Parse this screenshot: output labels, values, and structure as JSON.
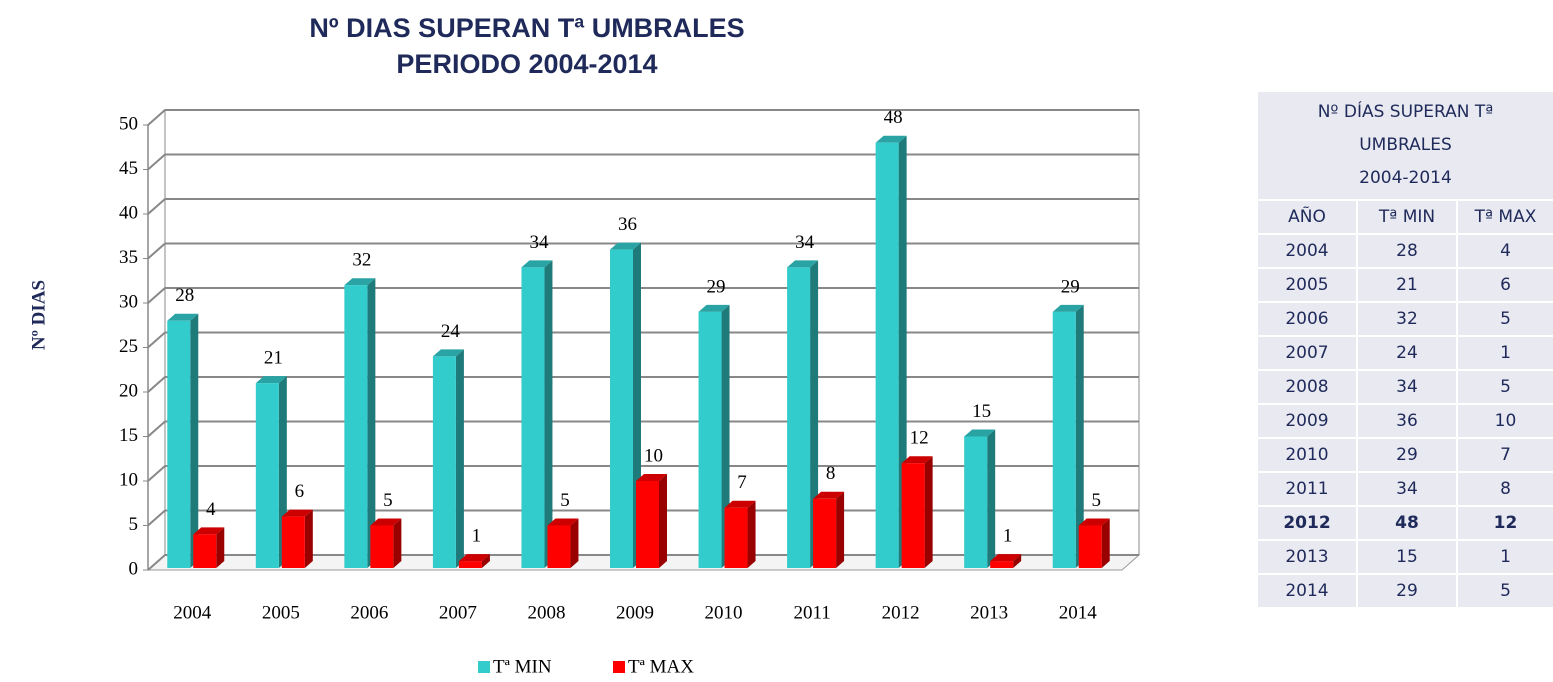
{
  "chart_data": {
    "type": "bar3d",
    "title": [
      "Nº DIAS SUPERAN Tª UMBRALES",
      "PERIODO 2004-2014"
    ],
    "y_label": "Nº DIAS",
    "categories": [
      "2004",
      "2005",
      "2006",
      "2007",
      "2008",
      "2009",
      "2010",
      "2011",
      "2012",
      "2013",
      "2014"
    ],
    "series": [
      {
        "name": "Tª MIN",
        "color": "#33cccc",
        "values": [
          28,
          21,
          32,
          24,
          34,
          36,
          29,
          34,
          48,
          15,
          29
        ]
      },
      {
        "name": "Tª MAX",
        "color": "#ff0000",
        "values": [
          4,
          6,
          5,
          1,
          5,
          10,
          7,
          8,
          12,
          1,
          5
        ]
      }
    ],
    "ylim": [
      0,
      50
    ],
    "yticks": [
      0,
      5,
      10,
      15,
      20,
      25,
      30,
      35,
      40,
      45,
      50
    ],
    "grid": true,
    "legend": "bottom"
  },
  "table": {
    "title": [
      "Nº DÍAS SUPERAN Tª",
      "UMBRALES",
      "2004-2014"
    ],
    "header": [
      "AÑO",
      "Tª MIN",
      "Tª MAX"
    ],
    "rows": [
      [
        "2004",
        "28",
        "4"
      ],
      [
        "2005",
        "21",
        "6"
      ],
      [
        "2006",
        "32",
        "5"
      ],
      [
        "2007",
        "24",
        "1"
      ],
      [
        "2008",
        "34",
        "5"
      ],
      [
        "2009",
        "36",
        "10"
      ],
      [
        "2010",
        "29",
        "7"
      ],
      [
        "2011",
        "34",
        "8"
      ],
      [
        "2012",
        "48",
        "12"
      ],
      [
        "2013",
        "15",
        "1"
      ],
      [
        "2014",
        "29",
        "5"
      ]
    ]
  }
}
